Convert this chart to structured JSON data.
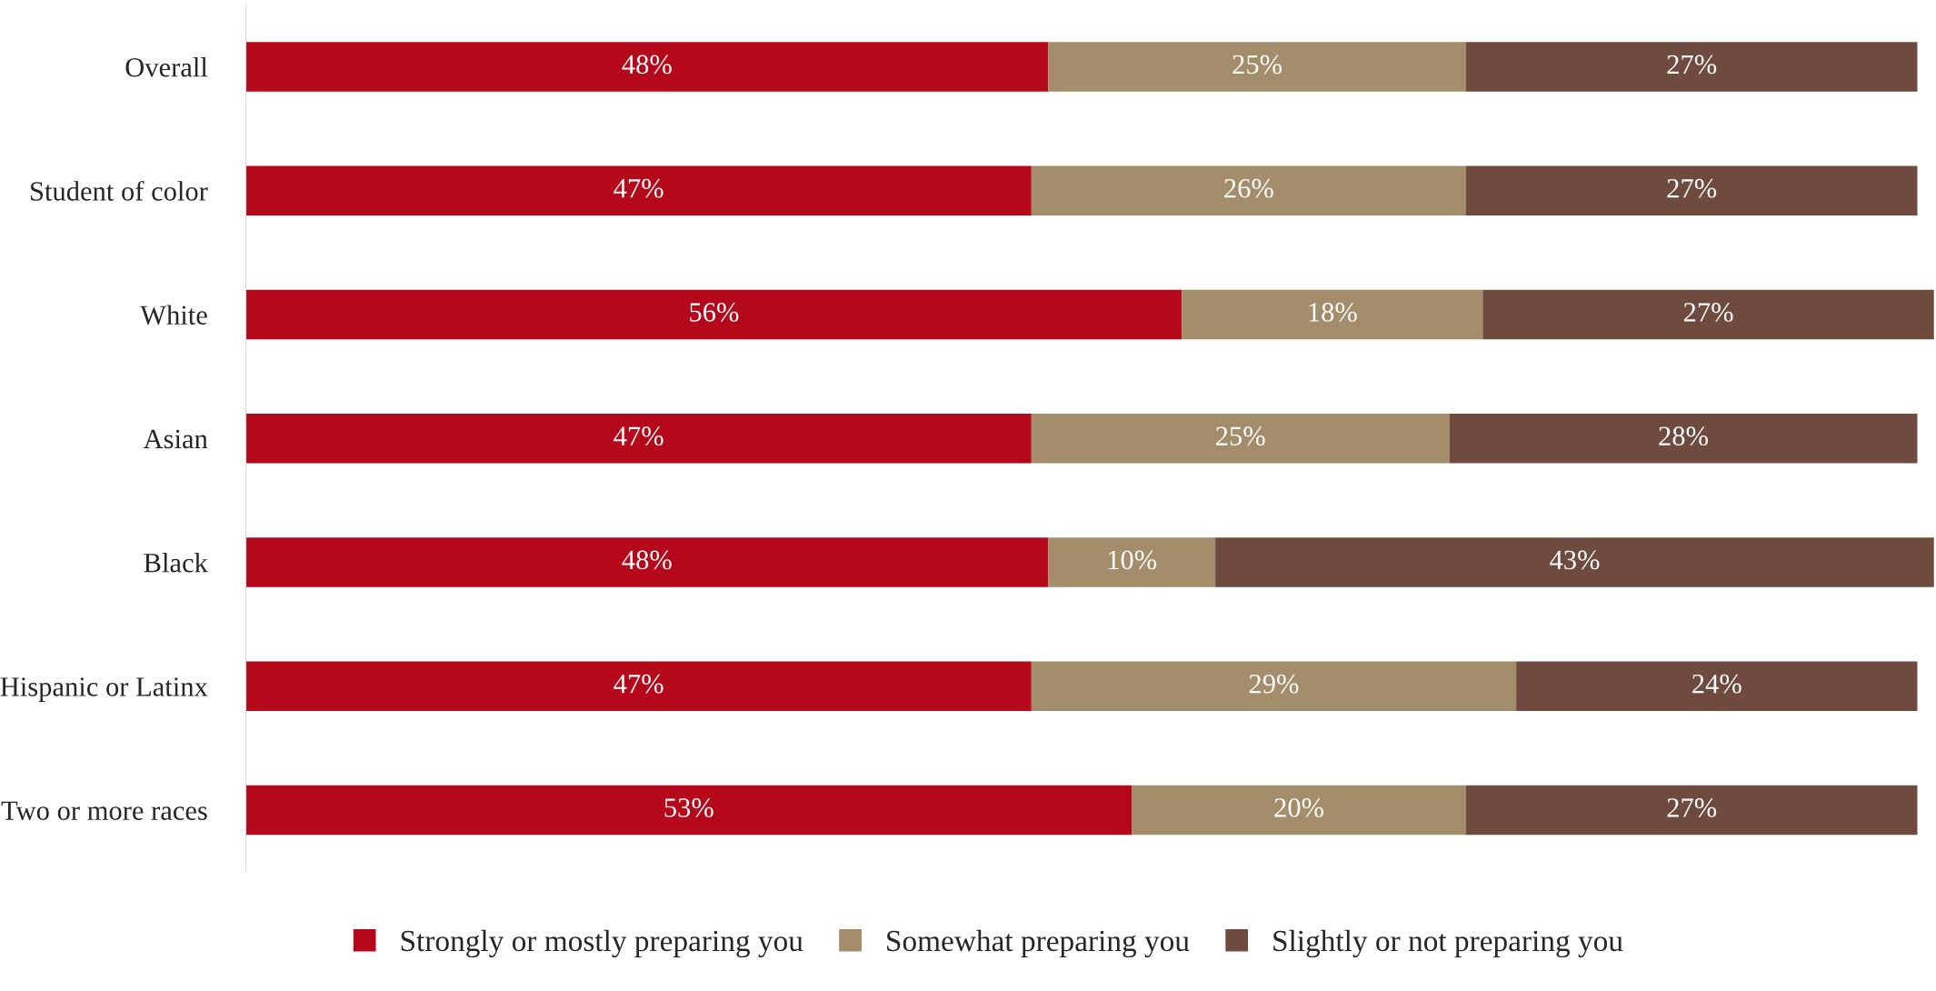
{
  "chart_data": {
    "type": "bar",
    "orientation": "horizontal",
    "stacked": true,
    "legend": "bottom",
    "grid": false,
    "categories": [
      "Overall",
      "Student of color",
      "White",
      "Asian",
      "Black",
      "Hispanic or Latinx",
      "Two or more races"
    ],
    "series": [
      {
        "name": "Strongly or mostly preparing you",
        "color": "#b5081a",
        "values": [
          48,
          47,
          56,
          47,
          48,
          47,
          53
        ],
        "value_labels": [
          "48%",
          "47%",
          "56%",
          "47%",
          "48%",
          "47%",
          "53%"
        ]
      },
      {
        "name": "Somewhat preparing you",
        "color": "#a38d6a",
        "values": [
          25,
          26,
          18,
          25,
          10,
          29,
          20
        ],
        "value_labels": [
          "25%",
          "26%",
          "18%",
          "25%",
          "10%",
          "29%",
          "20%"
        ]
      },
      {
        "name": "Slightly or not preparing you",
        "color": "#6e4b3e",
        "values": [
          27,
          27,
          27,
          28,
          43,
          24,
          27
        ],
        "value_labels": [
          "27%",
          "27%",
          "27%",
          "28%",
          "43%",
          "24%",
          "27%"
        ]
      }
    ]
  }
}
